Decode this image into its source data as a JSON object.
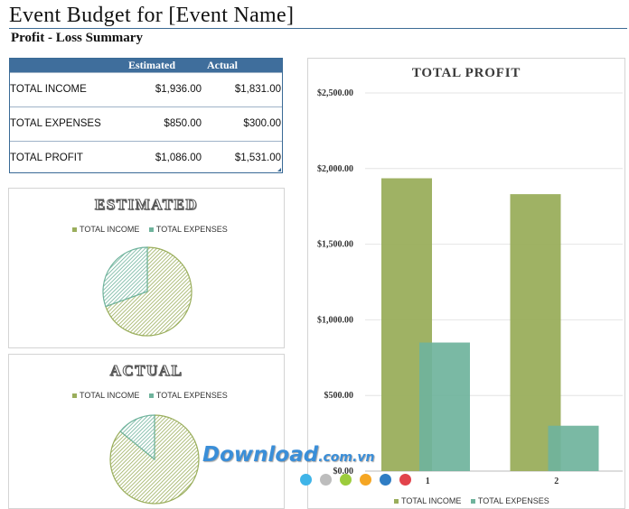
{
  "header": {
    "title": "Event Budget for [Event Name]",
    "subtitle": "Profit - Loss Summary"
  },
  "summary": {
    "col_estimated": "Estimated",
    "col_actual": "Actual",
    "rows": [
      {
        "label": "TOTAL INCOME",
        "estimated": "$1,936.00",
        "actual": "$1,831.00"
      },
      {
        "label": "TOTAL EXPENSES",
        "estimated": "$850.00",
        "actual": "$300.00"
      },
      {
        "label": "TOTAL PROFIT",
        "estimated": "$1,086.00",
        "actual": "$1,531.00"
      }
    ]
  },
  "legend": {
    "income": "TOTAL INCOME",
    "expenses": "TOTAL EXPENSES"
  },
  "colors": {
    "income": "#9aae5c",
    "expenses": "#6fb39c",
    "header_blue": "#3f6e9c"
  },
  "watermark": {
    "brand": "Download",
    "suffix": ".com.vn",
    "dot_colors": [
      "#3fb4e8",
      "#bdbdbd",
      "#9ccc3c",
      "#f5a623",
      "#2f7dc4",
      "#e2434b"
    ]
  },
  "chart_data": [
    {
      "type": "pie",
      "title": "ESTIMATED",
      "labels": [
        "TOTAL INCOME",
        "TOTAL EXPENSES"
      ],
      "values": [
        1936,
        850
      ]
    },
    {
      "type": "pie",
      "title": "ACTUAL",
      "labels": [
        "TOTAL INCOME",
        "TOTAL EXPENSES"
      ],
      "values": [
        1831,
        300
      ]
    },
    {
      "type": "bar",
      "title": "TOTAL PROFIT",
      "categories": [
        "1",
        "2"
      ],
      "series": [
        {
          "name": "TOTAL INCOME",
          "values": [
            1936,
            1831
          ]
        },
        {
          "name": "TOTAL EXPENSES",
          "values": [
            850,
            300
          ]
        }
      ],
      "ylim": [
        0,
        2500
      ],
      "yticks": [
        "$0.00",
        "$500.00",
        "$1,000.00",
        "$1,500.00",
        "$2,000.00",
        "$2,500.00"
      ],
      "ytick_values": [
        0,
        500,
        1000,
        1500,
        2000,
        2500
      ],
      "legend": "bottom"
    }
  ]
}
